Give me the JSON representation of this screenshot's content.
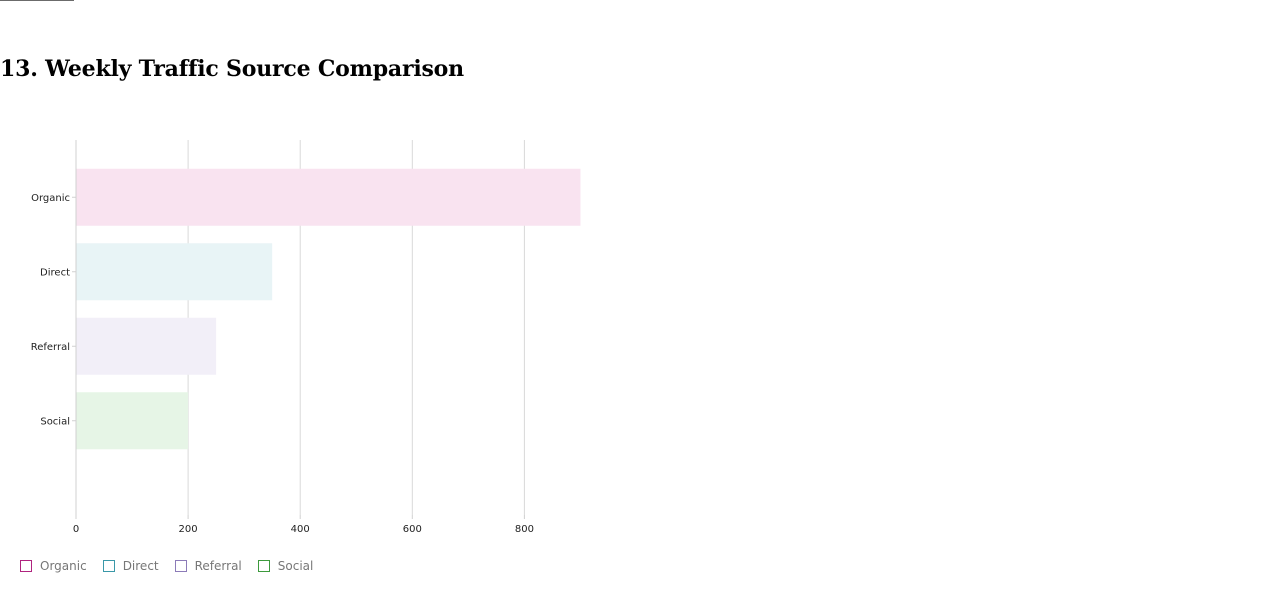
{
  "page": {
    "heading": "13. Weekly Traffic Source Comparison"
  },
  "chart_data": {
    "type": "bar",
    "orientation": "horizontal",
    "categories": [
      "Organic",
      "Direct",
      "Referral",
      "Social"
    ],
    "values": [
      900,
      350,
      250,
      200
    ],
    "title": "",
    "xlabel": "",
    "ylabel": "",
    "xlim": [
      0,
      900
    ],
    "xticks": [
      0,
      200,
      400,
      600,
      800
    ],
    "xtick_labels": [
      "0",
      "200",
      "400",
      "600",
      "800"
    ],
    "grid": "vertical",
    "legend_position": "bottom-left",
    "colors": {
      "fill": [
        "#f9e3f0",
        "#e8f4f6",
        "#f2eff8",
        "#e6f5e6"
      ],
      "border": [
        "#b0247f",
        "#3a98a8",
        "#8c7bb8",
        "#3d9a3d"
      ]
    },
    "legend": [
      "Organic",
      "Direct",
      "Referral",
      "Social"
    ]
  }
}
